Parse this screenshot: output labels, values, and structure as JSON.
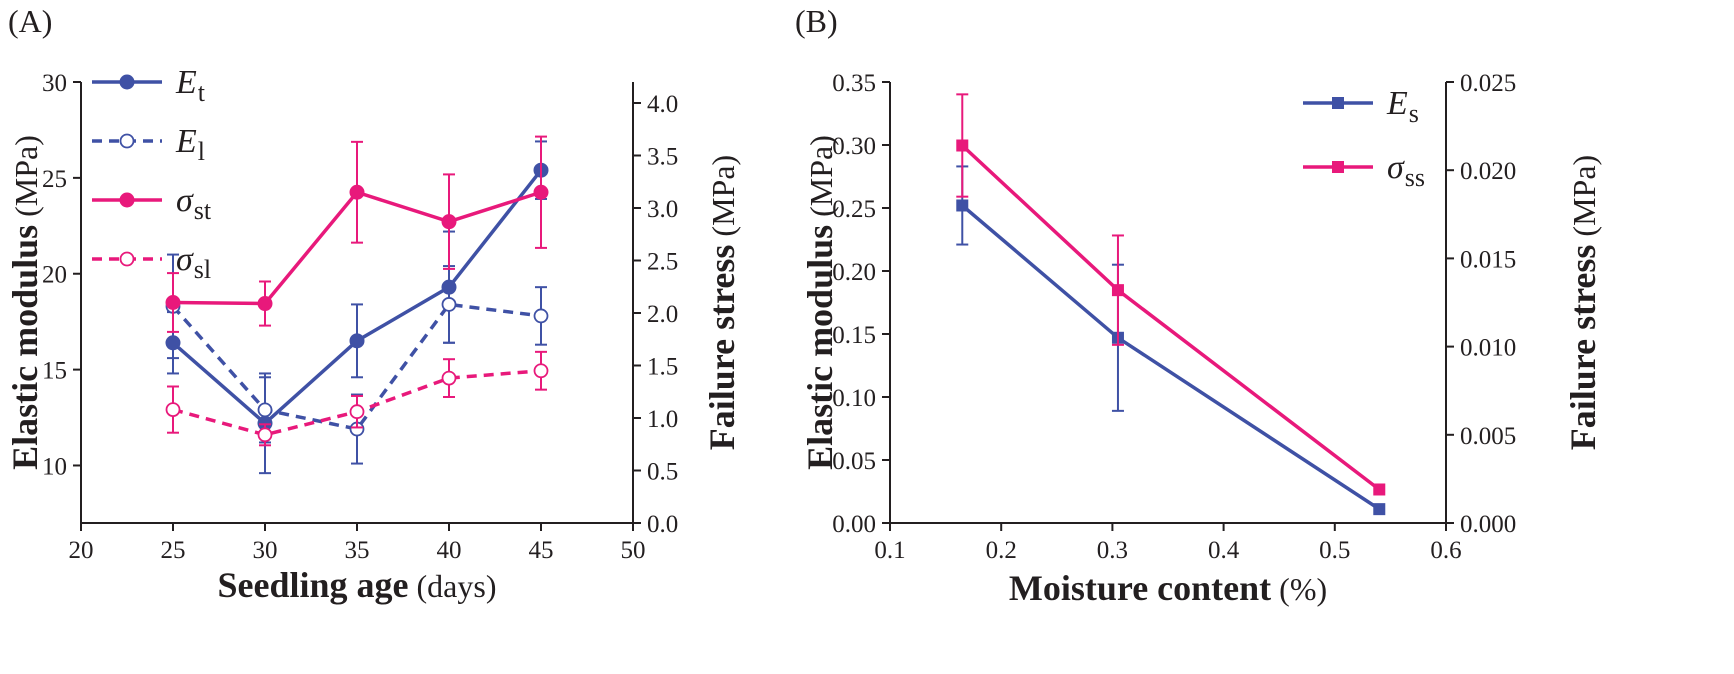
{
  "chart_data": [
    {
      "panel_label": "(A)",
      "type": "line",
      "xlabel": "Seedling age",
      "xlabel_unit": "(days)",
      "ylabel": "Elastic modulus",
      "ylabel_unit": "(MPa)",
      "y2label": "Failure stress",
      "y2label_unit": "(MPa)",
      "xlim": [
        20,
        50
      ],
      "ylim": [
        7,
        30
      ],
      "y2lim": [
        0,
        4.2
      ],
      "xticks": [
        "20",
        "25",
        "30",
        "35",
        "40",
        "45",
        "50"
      ],
      "yticks": [
        "10",
        "15",
        "20",
        "25",
        "30"
      ],
      "y2ticks": [
        "0.0",
        "0.5",
        "1.0",
        "1.5",
        "2.0",
        "2.5",
        "3.0",
        "3.5",
        "4.0"
      ],
      "grid": false,
      "legend_position": "top-left",
      "x": [
        25,
        30,
        35,
        40,
        45
      ],
      "series": [
        {
          "name": "E",
          "sub": "t",
          "axis": "left",
          "marker": "filled-circle",
          "style": "solid",
          "color": "#3f51a5",
          "values": [
            16.4,
            12.2,
            16.5,
            19.3,
            25.4
          ],
          "err": [
            1.6,
            2.6,
            1.9,
            2.9,
            1.5
          ]
        },
        {
          "name": "E",
          "sub": "l",
          "axis": "left",
          "marker": "open-circle",
          "style": "dashed",
          "color": "#3f51a5",
          "values": [
            18.3,
            12.9,
            11.9,
            18.4,
            17.8
          ],
          "err": [
            2.7,
            1.7,
            1.8,
            2.0,
            1.5
          ]
        },
        {
          "name": "σ",
          "sub": "st",
          "axis": "right",
          "marker": "filled-circle",
          "style": "solid",
          "color": "#e8197b",
          "values": [
            2.1,
            2.09,
            3.15,
            2.87,
            3.15
          ],
          "err": [
            0.28,
            0.21,
            0.48,
            0.45,
            0.53
          ]
        },
        {
          "name": "σ",
          "sub": "sl",
          "axis": "right",
          "marker": "open-circle",
          "style": "dashed",
          "color": "#e8197b",
          "values": [
            1.08,
            0.84,
            1.06,
            1.38,
            1.45
          ],
          "err": [
            0.22,
            0.1,
            0.15,
            0.18,
            0.18
          ]
        }
      ]
    },
    {
      "panel_label": "(B)",
      "type": "line",
      "xlabel": "Moisture content",
      "xlabel_unit": "(%)",
      "ylabel": "Elastic modulus",
      "ylabel_unit": "(MPa)",
      "y2label": "Failure stress",
      "y2label_unit": "(MPa)",
      "xlim": [
        0.1,
        0.6
      ],
      "ylim": [
        0,
        0.35
      ],
      "y2lim": [
        0,
        0.025
      ],
      "xticks": [
        "0.1",
        "0.2",
        "0.3",
        "0.4",
        "0.5",
        "0.6"
      ],
      "yticks": [
        "0.00",
        "0.05",
        "0.10",
        "0.15",
        "0.20",
        "0.25",
        "0.30",
        "0.35"
      ],
      "y2ticks": [
        "0.000",
        "0.005",
        "0.010",
        "0.015",
        "0.020",
        "0.025"
      ],
      "grid": false,
      "legend_position": "top-right",
      "x": [
        0.165,
        0.305,
        0.54
      ],
      "series": [
        {
          "name": "E",
          "sub": "s",
          "axis": "left",
          "marker": "filled-square",
          "style": "solid",
          "color": "#3f51a5",
          "values": [
            0.252,
            0.147,
            0.011
          ],
          "err": [
            0.031,
            0.058,
            0.0
          ]
        },
        {
          "name": "σ",
          "sub": "ss",
          "axis": "right",
          "marker": "filled-square",
          "style": "solid",
          "color": "#e8197b",
          "values": [
            0.0214,
            0.0132,
            0.0019
          ],
          "err": [
            0.0029,
            0.0031,
            0.0
          ]
        }
      ]
    }
  ]
}
